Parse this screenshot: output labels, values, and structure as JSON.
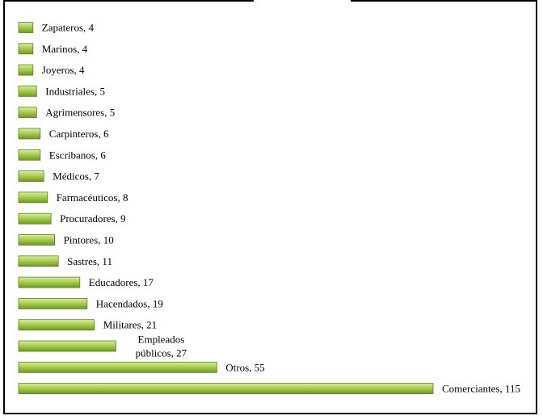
{
  "chart_data": {
    "type": "bar",
    "orientation": "horizontal",
    "categories": [
      "Zapateros",
      "Marinos",
      "Joyeros",
      "Industriales",
      "Agrimensores",
      "Carpinteros",
      "Escribanos",
      "Médicos",
      "Farmacéuticos",
      "Procuradores",
      "Pintores",
      "Sastres",
      "Educadores",
      "Hacendados",
      "Militares",
      "Empleados públicos",
      "Otros",
      "Comerciantes"
    ],
    "values": [
      4,
      4,
      4,
      5,
      5,
      6,
      6,
      7,
      8,
      9,
      10,
      11,
      17,
      19,
      21,
      27,
      55,
      115
    ],
    "data_labels": [
      [
        "Zapateros, 4"
      ],
      [
        "Marinos, 4"
      ],
      [
        "Joyeros, 4"
      ],
      [
        "Industriales, 5"
      ],
      [
        "Agrimensores, 5"
      ],
      [
        "Carpinteros, 6"
      ],
      [
        "Escribanos, 6"
      ],
      [
        "Médicos, 7"
      ],
      [
        "Farmacéuticos, 8"
      ],
      [
        "Procuradores, 9"
      ],
      [
        "Pintores, 10"
      ],
      [
        "Sastres, 11"
      ],
      [
        "Educadores, 17"
      ],
      [
        "Hacendados, 19"
      ],
      [
        "Militares, 21"
      ],
      [
        "Empleados",
        "públicos, 27"
      ],
      [
        "Otros, 55"
      ],
      [
        "Comerciantes, 115"
      ]
    ],
    "title": "",
    "xlabel": "",
    "ylabel": "",
    "xlim": [
      0,
      115
    ],
    "grid": false,
    "legend": "none",
    "colors": {
      "bar_light": "#dbeea4",
      "bar_mid": "#a9cf54",
      "bar_dark": "#6f9a1e",
      "bar_edge": "#5d7f1a"
    }
  }
}
